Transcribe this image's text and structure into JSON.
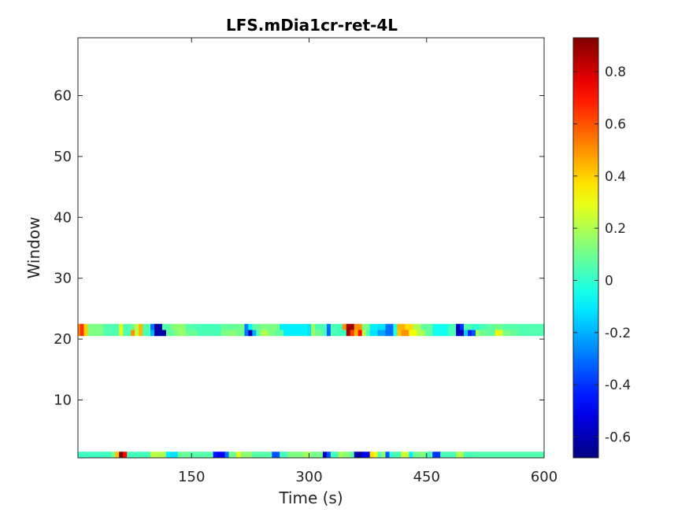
{
  "chart_data": {
    "type": "heatmap",
    "title": "LFS.mDia1cr-ret-4L",
    "xlabel": "Time (s)",
    "ylabel": "Window",
    "xlim": [
      5,
      600
    ],
    "ylim": [
      0.5,
      69.5
    ],
    "xticks": [
      150,
      300,
      450,
      600
    ],
    "xtick_labels": [
      "150",
      "300",
      "450",
      "600"
    ],
    "yticks": [
      10,
      20,
      30,
      40,
      50,
      60
    ],
    "ytick_labels": [
      "10",
      "20",
      "30",
      "40",
      "50",
      "60"
    ],
    "colorbar": {
      "colormap": "jet",
      "clim": [
        -0.68,
        0.93
      ],
      "ticks": [
        -0.6,
        -0.4,
        -0.2,
        0,
        0.2,
        0.4,
        0.6,
        0.8
      ],
      "tick_labels": [
        "-0.6",
        "-0.4",
        "-0.2",
        "0",
        "0.2",
        "0.4",
        "0.6",
        "0.8"
      ]
    },
    "time_step": 5,
    "nan_color": "#ffffff",
    "rows": [
      {
        "window": 1,
        "segments": [
          [
            5,
            50,
            0.02
          ],
          [
            50,
            55,
            0.12
          ],
          [
            55,
            60,
            0.42
          ],
          [
            60,
            65,
            0.93
          ],
          [
            65,
            70,
            0.72
          ],
          [
            70,
            100,
            0.03
          ],
          [
            100,
            110,
            0.22
          ],
          [
            110,
            120,
            0.2
          ],
          [
            120,
            125,
            -0.1
          ],
          [
            125,
            135,
            -0.12
          ],
          [
            135,
            150,
            0.09
          ],
          [
            150,
            180,
            0.06
          ],
          [
            180,
            185,
            -0.45
          ],
          [
            185,
            195,
            -0.5
          ],
          [
            195,
            200,
            -0.3
          ],
          [
            200,
            210,
            0.1
          ],
          [
            210,
            215,
            0.3
          ],
          [
            215,
            225,
            0.14
          ],
          [
            225,
            230,
            0.15
          ],
          [
            230,
            255,
            0.06
          ],
          [
            255,
            265,
            -0.35
          ],
          [
            265,
            275,
            0.03
          ],
          [
            275,
            295,
            0.12
          ],
          [
            295,
            305,
            0.18
          ],
          [
            305,
            320,
            0.11
          ],
          [
            320,
            325,
            -0.56
          ],
          [
            325,
            330,
            -0.35
          ],
          [
            330,
            340,
            0.03
          ],
          [
            340,
            345,
            0.2
          ],
          [
            345,
            355,
            0.14
          ],
          [
            355,
            360,
            0.04
          ],
          [
            360,
            370,
            -0.62
          ],
          [
            370,
            380,
            -0.5
          ],
          [
            380,
            385,
            0.38
          ],
          [
            385,
            390,
            0.3
          ],
          [
            390,
            395,
            0.05
          ],
          [
            395,
            400,
            0.15
          ],
          [
            400,
            405,
            -0.35
          ],
          [
            405,
            410,
            0.0
          ],
          [
            410,
            420,
            0.04
          ],
          [
            420,
            430,
            0.25
          ],
          [
            430,
            435,
            -0.1
          ],
          [
            435,
            445,
            0.1
          ],
          [
            445,
            450,
            0.15
          ],
          [
            450,
            460,
            0.04
          ],
          [
            460,
            470,
            -0.4
          ],
          [
            470,
            490,
            0.04
          ],
          [
            490,
            500,
            0.2
          ],
          [
            500,
            510,
            0.03
          ],
          [
            510,
            600,
            0.05
          ]
        ]
      },
      {
        "window": 21,
        "segments": [
          [
            5,
            10,
            0.5
          ],
          [
            10,
            15,
            0.65
          ],
          [
            15,
            20,
            0.4
          ],
          [
            20,
            40,
            0.12
          ],
          [
            40,
            50,
            0.05
          ],
          [
            50,
            60,
            0.05
          ],
          [
            60,
            65,
            0.28
          ],
          [
            65,
            75,
            0.05
          ],
          [
            75,
            80,
            0.5
          ],
          [
            80,
            85,
            0.22
          ],
          [
            85,
            90,
            0.44
          ],
          [
            90,
            95,
            0.05
          ],
          [
            95,
            100,
            0.04
          ],
          [
            100,
            105,
            -0.2
          ],
          [
            105,
            120,
            -0.62
          ],
          [
            120,
            130,
            0.08
          ],
          [
            130,
            135,
            0.12
          ],
          [
            135,
            145,
            0.16
          ],
          [
            145,
            160,
            0.09
          ],
          [
            160,
            175,
            0.04
          ],
          [
            175,
            185,
            0.04
          ],
          [
            185,
            190,
            0.03
          ],
          [
            190,
            200,
            0.12
          ],
          [
            200,
            210,
            0.14
          ],
          [
            210,
            220,
            0.1
          ],
          [
            220,
            225,
            -0.3
          ],
          [
            225,
            230,
            -0.6
          ],
          [
            230,
            235,
            -0.2
          ],
          [
            235,
            240,
            0.05
          ],
          [
            240,
            250,
            0.2
          ],
          [
            250,
            260,
            0.12
          ],
          [
            260,
            270,
            0.07
          ],
          [
            270,
            300,
            -0.1
          ],
          [
            300,
            305,
            -0.12
          ],
          [
            305,
            310,
            0.18
          ],
          [
            310,
            320,
            0.1
          ],
          [
            320,
            325,
            0.03
          ],
          [
            325,
            330,
            -0.32
          ],
          [
            330,
            340,
            0.04
          ],
          [
            340,
            350,
            0.02
          ],
          [
            350,
            355,
            0.88
          ],
          [
            355,
            360,
            0.62
          ],
          [
            360,
            365,
            0.45
          ],
          [
            365,
            370,
            0.72
          ],
          [
            370,
            375,
            0.22
          ],
          [
            375,
            380,
            0.04
          ],
          [
            380,
            390,
            -0.12
          ],
          [
            390,
            400,
            -0.22
          ],
          [
            400,
            410,
            -0.3
          ],
          [
            410,
            415,
            0.0
          ],
          [
            415,
            420,
            0.42
          ],
          [
            420,
            430,
            0.5
          ],
          [
            430,
            440,
            0.32
          ],
          [
            440,
            450,
            0.2
          ],
          [
            450,
            460,
            0.08
          ],
          [
            460,
            480,
            -0.05
          ],
          [
            480,
            490,
            0.04
          ],
          [
            490,
            500,
            -0.58
          ],
          [
            500,
            505,
            -0.15
          ],
          [
            505,
            510,
            -0.42
          ],
          [
            510,
            515,
            -0.35
          ],
          [
            515,
            520,
            0.18
          ],
          [
            520,
            530,
            0.1
          ],
          [
            530,
            540,
            0.07
          ],
          [
            540,
            545,
            0.35
          ],
          [
            545,
            550,
            0.25
          ],
          [
            550,
            560,
            0.12
          ],
          [
            560,
            570,
            0.08
          ],
          [
            570,
            600,
            0.05
          ]
        ]
      },
      {
        "window": 22,
        "segments": [
          [
            5,
            10,
            0.5
          ],
          [
            10,
            15,
            0.65
          ],
          [
            15,
            20,
            0.4
          ],
          [
            20,
            40,
            0.12
          ],
          [
            40,
            60,
            0.05
          ],
          [
            60,
            65,
            0.28
          ],
          [
            65,
            75,
            0.05
          ],
          [
            75,
            80,
            0.1
          ],
          [
            80,
            85,
            0.22
          ],
          [
            85,
            90,
            0.44
          ],
          [
            90,
            100,
            0.06
          ],
          [
            100,
            105,
            -0.3
          ],
          [
            105,
            115,
            -0.62
          ],
          [
            115,
            125,
            0.06
          ],
          [
            125,
            130,
            0.12
          ],
          [
            130,
            145,
            0.15
          ],
          [
            145,
            155,
            0.06
          ],
          [
            155,
            170,
            0.04
          ],
          [
            170,
            190,
            0.03
          ],
          [
            190,
            210,
            0.08
          ],
          [
            210,
            220,
            0.1
          ],
          [
            220,
            225,
            -0.28
          ],
          [
            225,
            230,
            -0.08
          ],
          [
            230,
            240,
            0.08
          ],
          [
            240,
            265,
            0.12
          ],
          [
            265,
            300,
            -0.1
          ],
          [
            300,
            305,
            -0.12
          ],
          [
            305,
            310,
            0.18
          ],
          [
            310,
            325,
            0.04
          ],
          [
            325,
            330,
            -0.3
          ],
          [
            330,
            340,
            0.04
          ],
          [
            340,
            345,
            0.02
          ],
          [
            345,
            350,
            0.5
          ],
          [
            350,
            360,
            0.88
          ],
          [
            360,
            370,
            0.5
          ],
          [
            370,
            380,
            0.12
          ],
          [
            380,
            390,
            -0.1
          ],
          [
            390,
            400,
            -0.12
          ],
          [
            400,
            410,
            -0.3
          ],
          [
            410,
            415,
            0.0
          ],
          [
            415,
            425,
            0.45
          ],
          [
            425,
            435,
            0.38
          ],
          [
            435,
            445,
            0.2
          ],
          [
            445,
            460,
            0.08
          ],
          [
            460,
            480,
            -0.05
          ],
          [
            480,
            490,
            0.04
          ],
          [
            490,
            495,
            -0.58
          ],
          [
            495,
            500,
            -0.4
          ],
          [
            500,
            510,
            0.05
          ],
          [
            510,
            520,
            0.0
          ],
          [
            520,
            530,
            0.04
          ],
          [
            530,
            540,
            0.08
          ],
          [
            540,
            550,
            0.1
          ],
          [
            550,
            570,
            0.06
          ],
          [
            570,
            600,
            0.05
          ]
        ]
      }
    ]
  }
}
